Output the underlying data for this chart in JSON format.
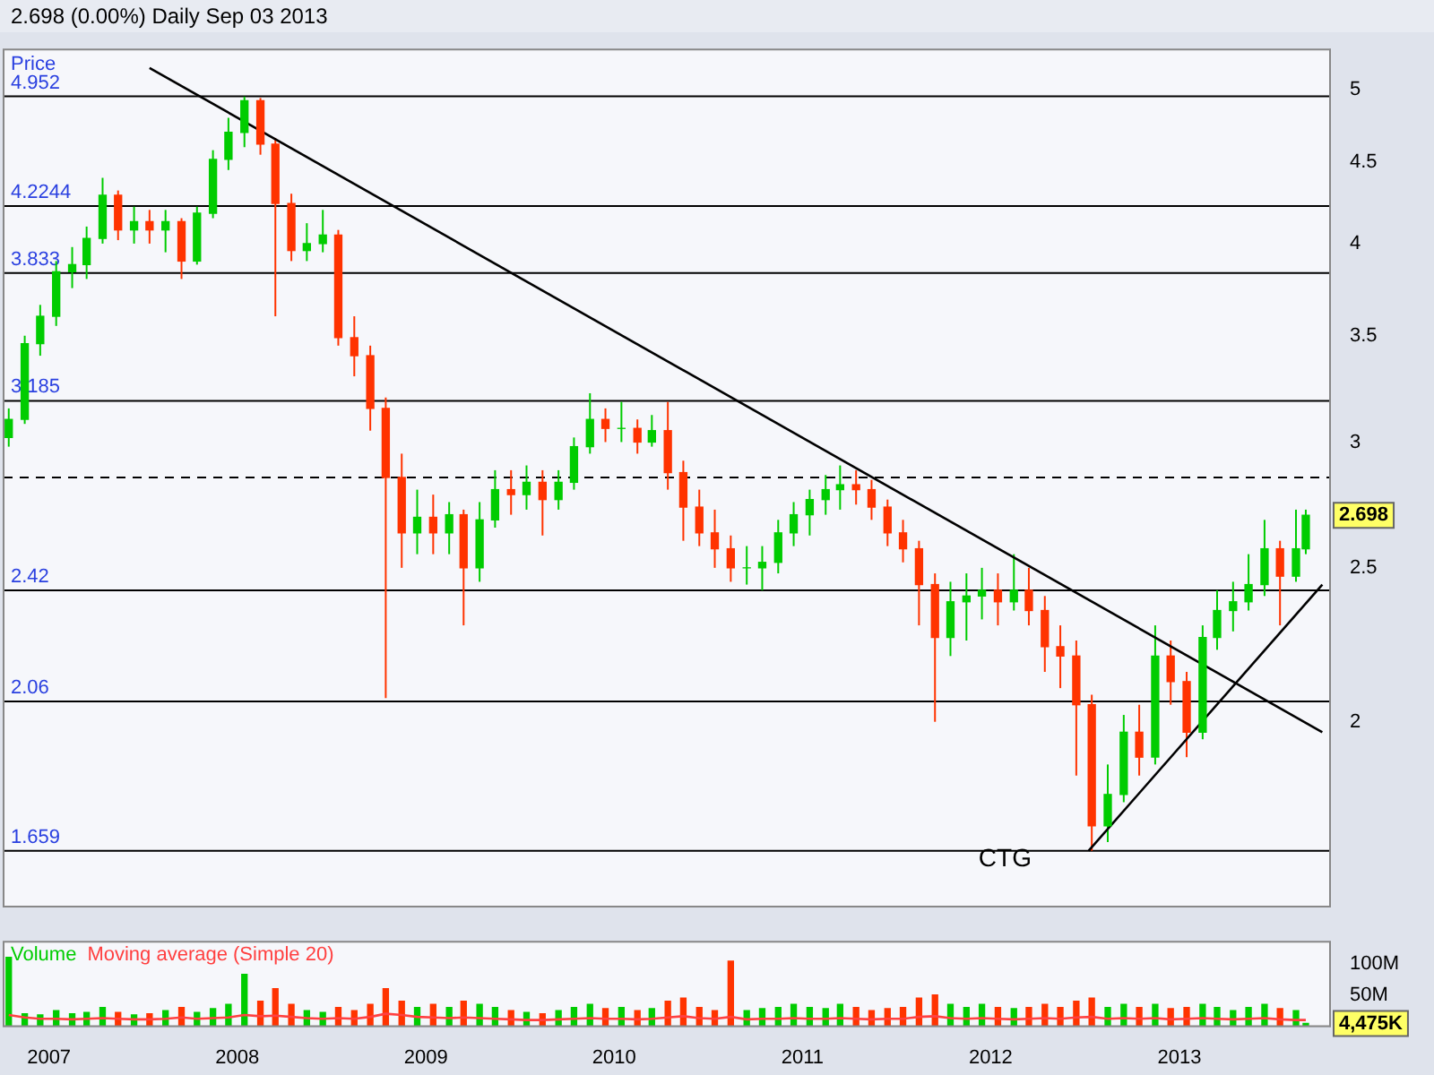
{
  "chart_data": [
    {
      "type": "candlestick",
      "title": "2.698 (0.00%)   Daily   Sep 03 2013",
      "ylabel": "Price",
      "log": true,
      "tick_labels": "y",
      "x": [
        "2006-10-15",
        "2006-11-15",
        "2006-12-15",
        "2007-01-15",
        "2007-02-15",
        "2007-03-15",
        "2007-04-15",
        "2007-05-15",
        "2007-06-15",
        "2007-07-15",
        "2007-08-15",
        "2007-09-15",
        "2007-10-15",
        "2007-11-15",
        "2007-12-15",
        "2008-01-15",
        "2008-02-15",
        "2008-03-15",
        "2008-04-15",
        "2008-05-15",
        "2008-06-15",
        "2008-07-15",
        "2008-08-15",
        "2008-09-15",
        "2008-10-15",
        "2008-11-15",
        "2008-12-15",
        "2009-01-15",
        "2009-02-15",
        "2009-03-15",
        "2009-04-15",
        "2009-05-15",
        "2009-06-15",
        "2009-07-15",
        "2009-08-15",
        "2009-09-15",
        "2009-10-15",
        "2009-11-15",
        "2009-12-15",
        "2010-01-15",
        "2010-02-15",
        "2010-03-15",
        "2010-04-15",
        "2010-05-15",
        "2010-06-15",
        "2010-07-15",
        "2010-08-15",
        "2010-09-15",
        "2010-10-15",
        "2010-11-15",
        "2010-12-15",
        "2011-01-15",
        "2011-02-15",
        "2011-03-15",
        "2011-04-15",
        "2011-05-15",
        "2011-06-15",
        "2011-07-15",
        "2011-08-15",
        "2011-09-15",
        "2011-10-15",
        "2011-11-15",
        "2011-12-15",
        "2012-01-15",
        "2012-02-15",
        "2012-03-15",
        "2012-04-15",
        "2012-05-15",
        "2012-06-15",
        "2012-07-15",
        "2012-08-15",
        "2012-09-15",
        "2012-10-15",
        "2012-11-15",
        "2012-12-15",
        "2013-01-15",
        "2013-02-15",
        "2013-03-15",
        "2013-04-15",
        "2013-05-15",
        "2013-06-15",
        "2013-07-15",
        "2013-08-15",
        "2013-09-03"
      ],
      "ohlc": [
        [
          3.02,
          3.15,
          2.98,
          3.1
        ],
        [
          3.1,
          3.5,
          3.08,
          3.46
        ],
        [
          3.46,
          3.66,
          3.4,
          3.6
        ],
        [
          3.6,
          3.9,
          3.55,
          3.84
        ],
        [
          3.84,
          3.98,
          3.75,
          3.88
        ],
        [
          3.88,
          4.1,
          3.8,
          4.03
        ],
        [
          4.03,
          4.4,
          4.0,
          4.29
        ],
        [
          4.29,
          4.32,
          4.02,
          4.08
        ],
        [
          4.08,
          4.22,
          4.0,
          4.13
        ],
        [
          4.13,
          4.2,
          4.0,
          4.08
        ],
        [
          4.08,
          4.2,
          3.95,
          4.13
        ],
        [
          4.13,
          4.15,
          3.8,
          3.9
        ],
        [
          3.9,
          4.22,
          3.88,
          4.18
        ],
        [
          4.18,
          4.58,
          4.15,
          4.52
        ],
        [
          4.52,
          4.8,
          4.45,
          4.7
        ],
        [
          4.7,
          4.95,
          4.6,
          4.92
        ],
        [
          4.92,
          4.94,
          4.55,
          4.62
        ],
        [
          4.62,
          4.66,
          3.6,
          4.24
        ],
        [
          4.24,
          4.3,
          3.9,
          3.96
        ],
        [
          3.96,
          4.12,
          3.9,
          4.0
        ],
        [
          4.0,
          4.2,
          3.95,
          4.05
        ],
        [
          4.05,
          4.08,
          3.45,
          3.49
        ],
        [
          3.49,
          3.6,
          3.3,
          3.4
        ],
        [
          3.4,
          3.45,
          3.05,
          3.15
        ],
        [
          3.15,
          3.2,
          2.07,
          2.85
        ],
        [
          2.85,
          2.95,
          2.5,
          2.63
        ],
        [
          2.63,
          2.8,
          2.55,
          2.69
        ],
        [
          2.69,
          2.78,
          2.55,
          2.63
        ],
        [
          2.63,
          2.75,
          2.55,
          2.7
        ],
        [
          2.7,
          2.72,
          2.3,
          2.5
        ],
        [
          2.5,
          2.75,
          2.45,
          2.68
        ],
        [
          2.68,
          2.88,
          2.65,
          2.8
        ],
        [
          2.8,
          2.88,
          2.7,
          2.78
        ],
        [
          2.78,
          2.9,
          2.72,
          2.83
        ],
        [
          2.83,
          2.88,
          2.62,
          2.76
        ],
        [
          2.76,
          2.88,
          2.72,
          2.83
        ],
        [
          2.83,
          3.02,
          2.8,
          2.98
        ],
        [
          2.98,
          3.22,
          2.95,
          3.1
        ],
        [
          3.1,
          3.15,
          3.0,
          3.06
        ],
        [
          3.06,
          3.18,
          3.0,
          3.06
        ],
        [
          3.06,
          3.1,
          2.95,
          3.0
        ],
        [
          3.0,
          3.12,
          2.98,
          3.05
        ],
        [
          3.05,
          3.18,
          2.8,
          2.87
        ],
        [
          2.87,
          2.92,
          2.6,
          2.73
        ],
        [
          2.73,
          2.8,
          2.58,
          2.63
        ],
        [
          2.63,
          2.72,
          2.5,
          2.57
        ],
        [
          2.57,
          2.62,
          2.45,
          2.5
        ],
        [
          2.5,
          2.58,
          2.44,
          2.5
        ],
        [
          2.5,
          2.58,
          2.42,
          2.52
        ],
        [
          2.52,
          2.68,
          2.48,
          2.63
        ],
        [
          2.63,
          2.75,
          2.58,
          2.7
        ],
        [
          2.7,
          2.8,
          2.62,
          2.76
        ],
        [
          2.76,
          2.86,
          2.7,
          2.8
        ],
        [
          2.8,
          2.9,
          2.72,
          2.82
        ],
        [
          2.82,
          2.88,
          2.74,
          2.8
        ],
        [
          2.8,
          2.84,
          2.68,
          2.73
        ],
        [
          2.73,
          2.76,
          2.58,
          2.63
        ],
        [
          2.63,
          2.68,
          2.52,
          2.57
        ],
        [
          2.57,
          2.6,
          2.3,
          2.44
        ],
        [
          2.44,
          2.48,
          2.0,
          2.26
        ],
        [
          2.26,
          2.45,
          2.2,
          2.38
        ],
        [
          2.38,
          2.48,
          2.25,
          2.4
        ],
        [
          2.4,
          2.5,
          2.32,
          2.42
        ],
        [
          2.42,
          2.48,
          2.3,
          2.38
        ],
        [
          2.38,
          2.55,
          2.35,
          2.42
        ],
        [
          2.42,
          2.5,
          2.3,
          2.35
        ],
        [
          2.35,
          2.4,
          2.15,
          2.23
        ],
        [
          2.23,
          2.3,
          2.1,
          2.2
        ],
        [
          2.2,
          2.25,
          1.85,
          2.05
        ],
        [
          2.05,
          2.08,
          1.659,
          1.72
        ],
        [
          1.72,
          1.88,
          1.68,
          1.8
        ],
        [
          1.8,
          2.02,
          1.78,
          1.97
        ],
        [
          1.97,
          2.05,
          1.85,
          1.9
        ],
        [
          1.9,
          2.3,
          1.88,
          2.2
        ],
        [
          2.2,
          2.25,
          2.05,
          2.12
        ],
        [
          2.12,
          2.15,
          1.9,
          1.97
        ],
        [
          1.97,
          2.3,
          1.95,
          2.26
        ],
        [
          2.26,
          2.42,
          2.22,
          2.35
        ],
        [
          2.35,
          2.45,
          2.28,
          2.38
        ],
        [
          2.38,
          2.55,
          2.35,
          2.44
        ],
        [
          2.44,
          2.68,
          2.4,
          2.57
        ],
        [
          2.57,
          2.6,
          2.3,
          2.47
        ],
        [
          2.47,
          2.72,
          2.45,
          2.57
        ],
        [
          2.57,
          2.72,
          2.55,
          2.698
        ]
      ],
      "colors": [
        "#00cc00",
        "#00cc00",
        "#00cc00",
        "#00cc00",
        "#00cc00",
        "#00cc00",
        "#00cc00",
        "#ff3300",
        "#00cc00",
        "#ff3300",
        "#00cc00",
        "#ff3300",
        "#00cc00",
        "#00cc00",
        "#00cc00",
        "#00cc00",
        "#ff3300",
        "#ff3300",
        "#ff3300",
        "#00cc00",
        "#00cc00",
        "#ff3300",
        "#ff3300",
        "#ff3300",
        "#ff3300",
        "#ff3300",
        "#00cc00",
        "#ff3300",
        "#00cc00",
        "#ff3300",
        "#00cc00",
        "#00cc00",
        "#ff3300",
        "#00cc00",
        "#ff3300",
        "#00cc00",
        "#00cc00",
        "#00cc00",
        "#ff3300",
        "#00cc00",
        "#ff3300",
        "#00cc00",
        "#ff3300",
        "#ff3300",
        "#ff3300",
        "#ff3300",
        "#ff3300",
        "#00cc00",
        "#00cc00",
        "#00cc00",
        "#00cc00",
        "#00cc00",
        "#00cc00",
        "#00cc00",
        "#ff3300",
        "#ff3300",
        "#ff3300",
        "#ff3300",
        "#ff3300",
        "#ff3300",
        "#00cc00",
        "#00cc00",
        "#00cc00",
        "#ff3300",
        "#00cc00",
        "#ff3300",
        "#ff3300",
        "#ff3300",
        "#ff3300",
        "#ff3300",
        "#00cc00",
        "#00cc00",
        "#ff3300",
        "#00cc00",
        "#ff3300",
        "#ff3300",
        "#00cc00",
        "#00cc00",
        "#00cc00",
        "#00cc00",
        "#00cc00",
        "#ff3300",
        "#00cc00",
        "#00cc00"
      ],
      "series": [
        {
          "type": "line",
          "color": "#000000",
          "x": [
            "2007-07-15",
            "2013-10-05"
          ],
          "values": [
            5.16,
            1.97
          ]
        },
        {
          "type": "line",
          "color": "#000000",
          "x": [
            "2012-07-09",
            "2013-10-05"
          ],
          "values": [
            1.659,
            2.44
          ]
        }
      ],
      "ref_lines": [
        {
          "axis": "y",
          "value": 4.952,
          "label": "4.952"
        },
        {
          "axis": "y",
          "value": 4.2244,
          "label": "4.2244"
        },
        {
          "axis": "y",
          "value": 3.833,
          "label": "3.833"
        },
        {
          "axis": "y",
          "value": 3.185,
          "label": "3.185"
        },
        {
          "axis": "y",
          "value": 2.85,
          "line_style": "dashed"
        },
        {
          "axis": "y",
          "value": 2.42,
          "label": "2.42"
        },
        {
          "axis": "y",
          "value": 2.06,
          "label": "2.06"
        },
        {
          "axis": "y",
          "value": 1.659,
          "label": "1.659"
        }
      ],
      "annotations": [
        "CTG",
        {
          "text": "2.698",
          "x": "2013-09-03",
          "y": 2.698
        }
      ],
      "xlim": [
        "2006-10-05",
        "2013-10-20"
      ],
      "xticks": [
        {
          "value": "2007-01-01",
          "label": null
        },
        {
          "value": "2008-01-01",
          "label": null
        },
        {
          "value": "2009-01-01",
          "label": null
        },
        {
          "value": "2010-01-01",
          "label": null
        },
        {
          "value": "2011-01-01",
          "label": null
        },
        {
          "value": "2012-01-01",
          "label": null
        },
        {
          "value": "2013-01-01",
          "label": null
        }
      ],
      "ylim": [
        1.53,
        5.3
      ],
      "yticks": [
        2,
        2.5,
        3,
        3.5,
        4,
        4.5,
        5
      ]
    },
    {
      "type": "bar",
      "x": [
        "2006-10-15",
        "2006-11-15",
        "2006-12-15",
        "2007-01-15",
        "2007-02-15",
        "2007-03-15",
        "2007-04-15",
        "2007-05-15",
        "2007-06-15",
        "2007-07-15",
        "2007-08-15",
        "2007-09-15",
        "2007-10-15",
        "2007-11-15",
        "2007-12-15",
        "2008-01-15",
        "2008-02-15",
        "2008-03-15",
        "2008-04-15",
        "2008-05-15",
        "2008-06-15",
        "2008-07-15",
        "2008-08-15",
        "2008-09-15",
        "2008-10-15",
        "2008-11-15",
        "2008-12-15",
        "2009-01-15",
        "2009-02-15",
        "2009-03-15",
        "2009-04-15",
        "2009-05-15",
        "2009-06-15",
        "2009-07-15",
        "2009-08-15",
        "2009-09-15",
        "2009-10-15",
        "2009-11-15",
        "2009-12-15",
        "2010-01-15",
        "2010-02-15",
        "2010-03-15",
        "2010-04-15",
        "2010-05-15",
        "2010-06-15",
        "2010-07-15",
        "2010-08-15",
        "2010-09-15",
        "2010-10-15",
        "2010-11-15",
        "2010-12-15",
        "2011-01-15",
        "2011-02-15",
        "2011-03-15",
        "2011-04-15",
        "2011-05-15",
        "2011-06-15",
        "2011-07-15",
        "2011-08-15",
        "2011-09-15",
        "2011-10-15",
        "2011-11-15",
        "2011-12-15",
        "2012-01-15",
        "2012-02-15",
        "2012-03-15",
        "2012-04-15",
        "2012-05-15",
        "2012-06-15",
        "2012-07-15",
        "2012-08-15",
        "2012-09-15",
        "2012-10-15",
        "2012-11-15",
        "2012-12-15",
        "2013-01-15",
        "2013-02-15",
        "2013-03-15",
        "2013-04-15",
        "2013-05-15",
        "2013-06-15",
        "2013-07-15",
        "2013-08-15",
        "2013-09-03"
      ],
      "series": [
        {
          "name": "Volume",
          "type": "bar",
          "color": "#00cc00",
          "colors": [
            "#00cc00",
            "#00cc00",
            "#00cc00",
            "#00cc00",
            "#00cc00",
            "#00cc00",
            "#00cc00",
            "#ff3300",
            "#00cc00",
            "#ff3300",
            "#00cc00",
            "#ff3300",
            "#00cc00",
            "#00cc00",
            "#00cc00",
            "#00cc00",
            "#ff3300",
            "#ff3300",
            "#ff3300",
            "#00cc00",
            "#00cc00",
            "#ff3300",
            "#ff3300",
            "#ff3300",
            "#ff3300",
            "#ff3300",
            "#00cc00",
            "#ff3300",
            "#00cc00",
            "#ff3300",
            "#00cc00",
            "#00cc00",
            "#ff3300",
            "#00cc00",
            "#ff3300",
            "#00cc00",
            "#00cc00",
            "#00cc00",
            "#ff3300",
            "#00cc00",
            "#ff3300",
            "#00cc00",
            "#ff3300",
            "#ff3300",
            "#ff3300",
            "#ff3300",
            "#ff3300",
            "#00cc00",
            "#00cc00",
            "#00cc00",
            "#00cc00",
            "#00cc00",
            "#00cc00",
            "#00cc00",
            "#ff3300",
            "#ff3300",
            "#ff3300",
            "#ff3300",
            "#ff3300",
            "#ff3300",
            "#00cc00",
            "#00cc00",
            "#00cc00",
            "#ff3300",
            "#00cc00",
            "#ff3300",
            "#ff3300",
            "#ff3300",
            "#ff3300",
            "#ff3300",
            "#00cc00",
            "#00cc00",
            "#ff3300",
            "#00cc00",
            "#ff3300",
            "#ff3300",
            "#00cc00",
            "#00cc00",
            "#00cc00",
            "#00cc00",
            "#00cc00",
            "#ff3300",
            "#00cc00",
            "#00cc00"
          ],
          "values": [
            110,
            20,
            18,
            25,
            20,
            22,
            30,
            22,
            18,
            20,
            25,
            30,
            22,
            28,
            35,
            83,
            40,
            60,
            35,
            25,
            22,
            30,
            25,
            35,
            60,
            40,
            30,
            35,
            30,
            40,
            35,
            30,
            25,
            22,
            20,
            25,
            30,
            35,
            28,
            30,
            25,
            28,
            40,
            45,
            30,
            25,
            104,
            25,
            28,
            30,
            35,
            30,
            28,
            35,
            30,
            25,
            28,
            30,
            45,
            50,
            35,
            30,
            35,
            30,
            28,
            30,
            35,
            30,
            40,
            45,
            30,
            35,
            30,
            35,
            28,
            30,
            35,
            30,
            25,
            30,
            35,
            28,
            25,
            4.5
          ]
        },
        {
          "name": "Moving average (Simple 20)",
          "type": "line",
          "color": "#ff4040",
          "values": [
            18,
            14,
            12,
            12,
            11,
            12,
            13,
            12,
            11,
            11,
            12,
            14,
            12,
            13,
            14,
            18,
            16,
            17,
            15,
            13,
            12,
            13,
            12,
            15,
            20,
            18,
            15,
            14,
            13,
            14,
            13,
            12,
            11,
            10,
            10,
            11,
            12,
            13,
            12,
            12,
            11,
            12,
            14,
            16,
            13,
            12,
            15,
            11,
            12,
            12,
            13,
            12,
            12,
            13,
            12,
            11,
            12,
            12,
            15,
            16,
            13,
            12,
            13,
            12,
            11,
            12,
            13,
            12,
            14,
            15,
            12,
            13,
            12,
            13,
            11,
            12,
            13,
            12,
            11,
            12,
            13,
            11,
            10,
            10
          ]
        }
      ],
      "annotations": [
        {
          "text": "4,475K",
          "x": "2013-09-03",
          "y": 4.475
        }
      ],
      "xlim": [
        "2006-10-05",
        "2013-10-20"
      ],
      "xticks": [
        {
          "value": "2007-01-01",
          "label": "2007"
        },
        {
          "value": "2008-01-01",
          "label": "2008"
        },
        {
          "value": "2009-01-01",
          "label": "2009"
        },
        {
          "value": "2010-01-01",
          "label": "2010"
        },
        {
          "value": "2011-01-01",
          "label": "2011"
        },
        {
          "value": "2012-01-01",
          "label": "2012"
        },
        {
          "value": "2013-01-01",
          "label": "2013"
        }
      ],
      "ylim": [
        0,
        135
      ],
      "yticks": [
        {
          "value": 50,
          "label": "50M"
        },
        {
          "value": 100,
          "label": "100M"
        }
      ]
    }
  ]
}
